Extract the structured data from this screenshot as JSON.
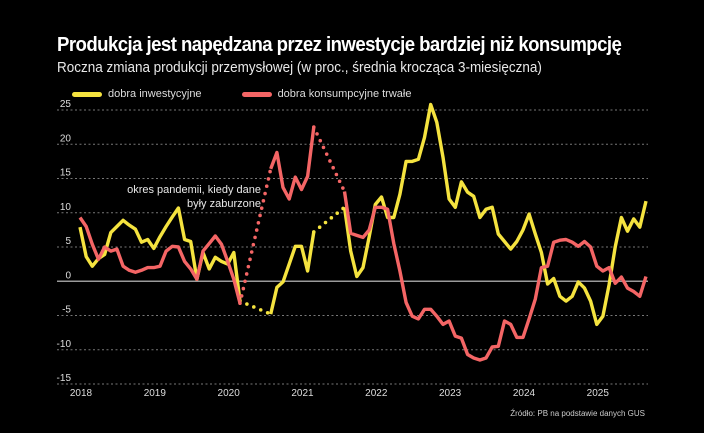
{
  "header": {
    "title": "Produkcja jest napędzana przez inwestycje bardziej niż konsumpcję",
    "subtitle": "Roczna zmiana produkcji przemysłowej (w proc., średnia krocząca 3-miesięczna)"
  },
  "annotation": {
    "line1": "okres pandemii, kiedy dane",
    "line2": "były zaburzone"
  },
  "source": "Źródło: PB na podstawie danych GUS",
  "chart_data": {
    "type": "line",
    "title": "Produkcja jest napędzana przez inwestycje bardziej niż konsumpcję",
    "subtitle": "Roczna zmiana produkcji przemysłowej (w proc., średnia krocząca 3-miesięczna)",
    "xlabel": "",
    "ylabel": "",
    "x_unit": "month index from Jan 2018",
    "xlim": [
      0,
      92
    ],
    "ylim": [
      -15,
      25
    ],
    "yticks": [
      25,
      20,
      15,
      10,
      5,
      0,
      -5,
      -10,
      -15
    ],
    "xticks": [
      {
        "label": "2018",
        "at": 0
      },
      {
        "label": "2019",
        "at": 12
      },
      {
        "label": "2020",
        "at": 24
      },
      {
        "label": "2021",
        "at": 36
      },
      {
        "label": "2022",
        "at": 48
      },
      {
        "label": "2023",
        "at": 60
      },
      {
        "label": "2024",
        "at": 72
      },
      {
        "label": "2025",
        "at": 84
      }
    ],
    "grid": true,
    "legend": "top-left",
    "dotted_segments_note": "pandemic period data drawn as dotted connectors",
    "series": [
      {
        "name": "dobra inwestycyjne",
        "color": "#f5e33f",
        "segments": [
          {
            "style": "solid",
            "x": [
              0,
              1,
              2,
              3,
              4,
              5,
              6,
              7,
              8,
              9,
              10,
              11,
              12,
              13,
              14,
              15,
              16,
              17,
              18,
              19,
              20,
              21,
              22,
              23,
              24,
              25,
              26
            ],
            "y": [
              7.9,
              3.6,
              2.2,
              3.3,
              3.9,
              7.1,
              8.0,
              8.9,
              8.2,
              7.6,
              5.7,
              6.1,
              4.8,
              6.5,
              8.0,
              9.4,
              10.7,
              6.1,
              5.8,
              0.3,
              4.2,
              1.8,
              3.5,
              2.9,
              2.5,
              4.2,
              -2.9
            ]
          },
          {
            "style": "dotted",
            "x": [
              26,
              31
            ],
            "y": [
              -2.9,
              -4.8
            ]
          },
          {
            "style": "solid",
            "x": [
              31,
              32,
              33,
              34,
              35,
              36,
              37,
              38
            ],
            "y": [
              -4.8,
              -0.9,
              -0.1,
              2.5,
              5.1,
              5.1,
              1.5,
              7.2
            ]
          },
          {
            "style": "dotted",
            "x": [
              38,
              43
            ],
            "y": [
              7.2,
              10.8
            ]
          },
          {
            "style": "solid",
            "x": [
              43,
              44,
              45,
              46,
              47,
              48,
              49,
              50,
              51,
              52,
              53,
              54,
              55,
              56,
              57,
              58,
              59,
              60,
              61,
              62,
              63,
              64,
              65,
              66,
              67,
              68,
              69,
              70,
              71,
              72,
              73,
              74,
              75,
              76,
              77,
              78,
              79,
              80,
              81,
              82,
              83,
              84,
              85,
              86,
              87,
              88,
              89,
              90,
              91,
              92
            ],
            "y": [
              10.8,
              4.4,
              0.7,
              2.0,
              6.5,
              11.2,
              12.3,
              9.3,
              9.3,
              12.7,
              17.5,
              17.5,
              17.8,
              21.0,
              25.8,
              23.2,
              18.1,
              12.0,
              10.8,
              14.5,
              13.0,
              12.4,
              9.3,
              10.5,
              10.8,
              6.9,
              5.8,
              4.7,
              5.8,
              7.5,
              9.8,
              6.9,
              4.2,
              -0.4,
              0.4,
              -2.2,
              -2.9,
              -2.2,
              -0.1,
              -1.0,
              -2.9,
              -6.3,
              -5.1,
              -0.5,
              5.0,
              9.3,
              7.3,
              9.1,
              7.9,
              11.7
            ]
          }
        ]
      },
      {
        "name": "dobra konsumpcyjne trwałe",
        "color": "#f46565",
        "segments": [
          {
            "style": "solid",
            "x": [
              0,
              1,
              2,
              3,
              4,
              5,
              6,
              7,
              8,
              9,
              10,
              11,
              12,
              13,
              14,
              15,
              16,
              17,
              18,
              19,
              20,
              21,
              22,
              23,
              24,
              25,
              26
            ],
            "y": [
              9.3,
              8.0,
              5.4,
              3.2,
              5.0,
              4.4,
              4.7,
              2.2,
              1.6,
              1.3,
              1.6,
              2.0,
              2.0,
              2.2,
              4.4,
              5.1,
              5.0,
              2.9,
              1.8,
              0.3,
              4.4,
              5.5,
              6.6,
              5.4,
              2.9,
              0.3,
              -3.2
            ]
          },
          {
            "style": "dotted",
            "x": [
              26,
              31
            ],
            "y": [
              -3.2,
              16.4
            ]
          },
          {
            "style": "solid",
            "x": [
              31,
              32,
              33,
              34,
              35,
              36,
              37,
              38
            ],
            "y": [
              16.4,
              18.8,
              13.7,
              12.0,
              15.2,
              13.4,
              15.3,
              22.5
            ]
          },
          {
            "style": "dotted",
            "x": [
              38,
              43
            ],
            "y": [
              22.5,
              13.1
            ]
          },
          {
            "style": "solid",
            "x": [
              43,
              44,
              45,
              46,
              47,
              48,
              49,
              50,
              51,
              52,
              53,
              54,
              55,
              56,
              57,
              58,
              59,
              60,
              61,
              62,
              63,
              64,
              65,
              66,
              67,
              68,
              69,
              70,
              71,
              72,
              73,
              74,
              75,
              76,
              77,
              78,
              79,
              80,
              81,
              82,
              83,
              84,
              85,
              86,
              87,
              88,
              89,
              90,
              91,
              92
            ],
            "y": [
              13.1,
              7.0,
              6.7,
              6.4,
              7.5,
              10.8,
              10.8,
              10.5,
              5.5,
              1.5,
              -3.1,
              -5.1,
              -5.5,
              -4.1,
              -4.1,
              -5.1,
              -6.3,
              -5.8,
              -8.0,
              -8.3,
              -10.7,
              -11.2,
              -11.5,
              -11.2,
              -9.6,
              -9.5,
              -5.8,
              -6.3,
              -8.2,
              -8.2,
              -5.5,
              -2.6,
              2.0,
              2.2,
              5.7,
              6.0,
              6.1,
              5.7,
              5.1,
              5.8,
              5.0,
              2.2,
              1.5,
              2.0,
              -0.3,
              0.6,
              -1.0,
              -1.5,
              -2.2,
              0.7
            ]
          }
        ]
      }
    ]
  }
}
